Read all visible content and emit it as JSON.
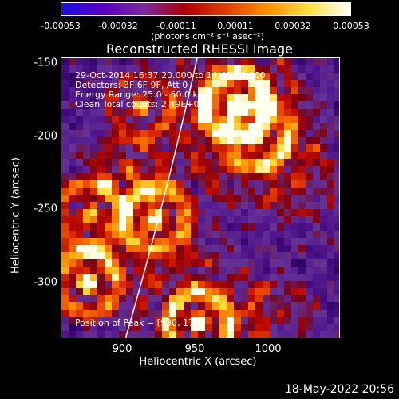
{
  "colorbar": {
    "ticks": [
      "-0.00053",
      "-0.00032",
      "-0.00011",
      "0.00011",
      "0.00032",
      "0.00053"
    ],
    "units": "(photons cm⁻² s⁻¹ asec⁻²)",
    "colors": [
      "#1a10e0",
      "#5a00c0",
      "#7a2aa0",
      "#b00000",
      "#e04000",
      "#ff9000",
      "#ffe040",
      "#ffffff"
    ]
  },
  "title": "Reconstructed RHESSI Image",
  "info": {
    "line1": "29-Oct-2014 16:37:20.000 to 16:43:20.000",
    "line2": "Detectors: 3F 6F 9F, Att 0",
    "line3": "Energy Range: 25.0 - 50.0 keV",
    "line4": "Clean    Total counts: 2.49E+03",
    "peak": "Position of Peak = [990, 175]"
  },
  "axes": {
    "xlabel": "Heliocentric X (arcsec)",
    "ylabel": "Heliocentric Y (arcsec)",
    "xticks": [
      "900",
      "950",
      "1000"
    ],
    "yticks": [
      "-150",
      "-200",
      "-250",
      "-300"
    ]
  },
  "timestamp": "18-May-2022 20:56"
}
